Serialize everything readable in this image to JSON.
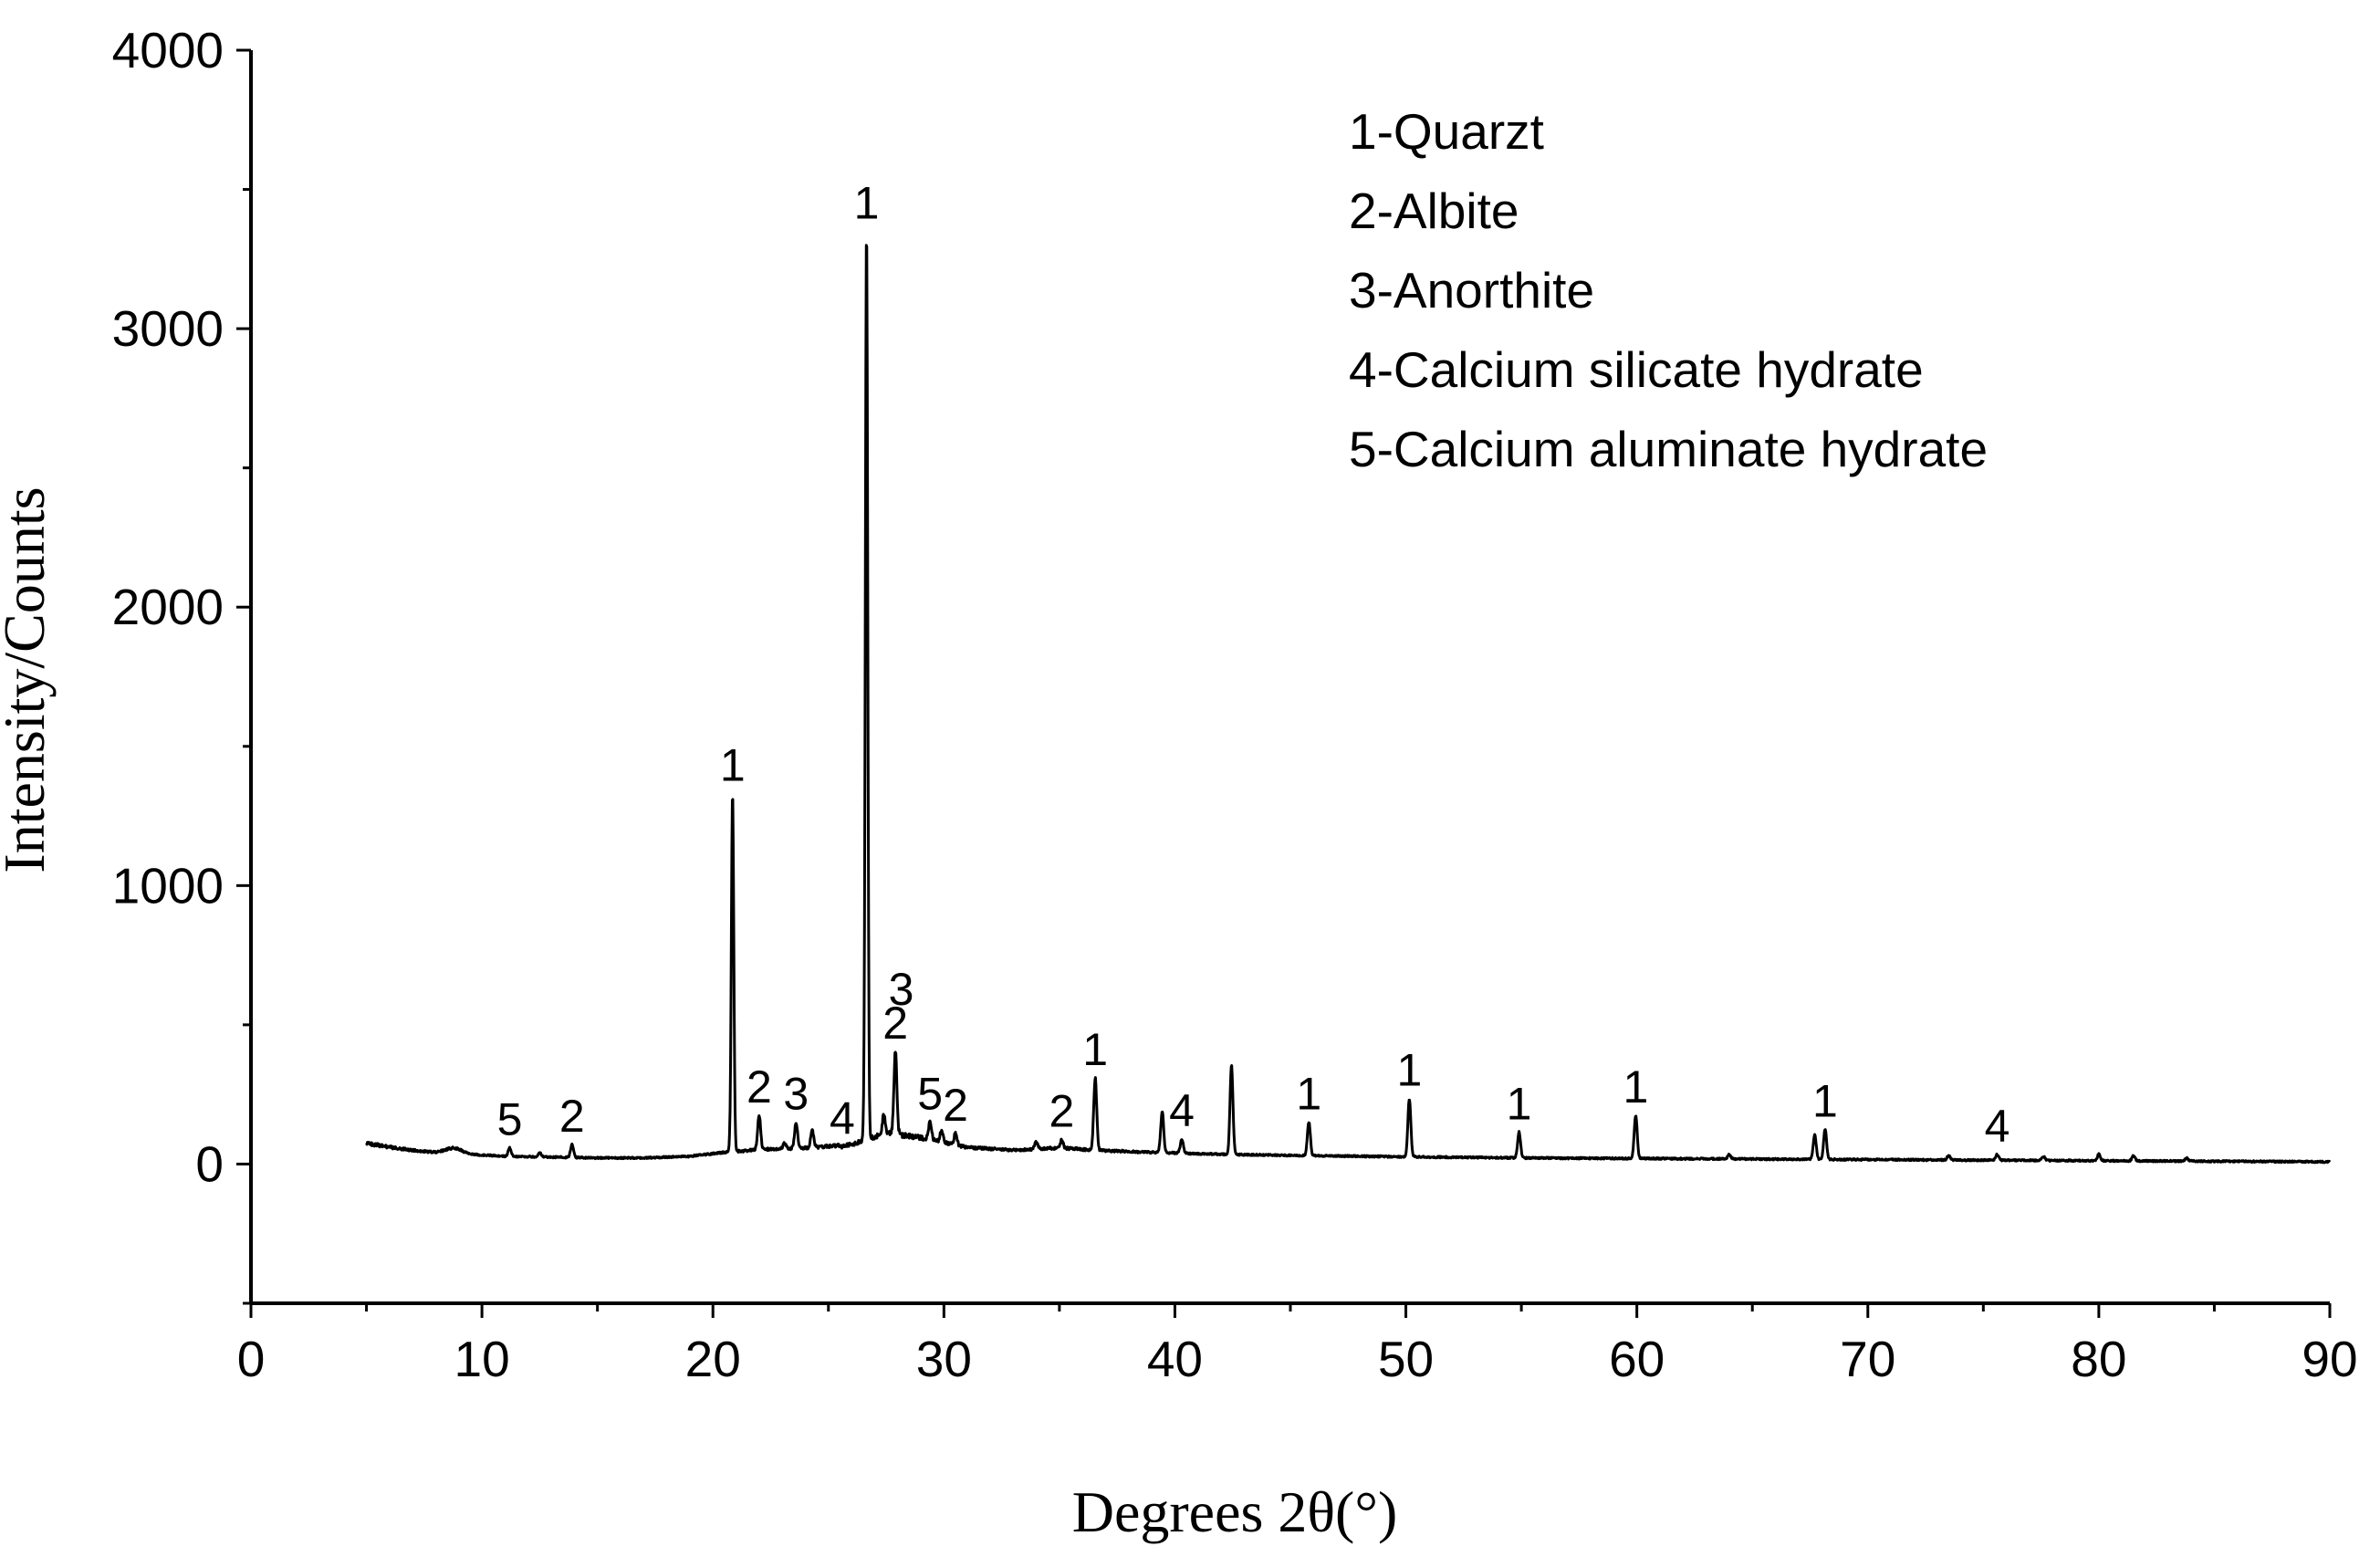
{
  "chart_data": {
    "type": "line",
    "xlabel": "Degrees 2θ(°)",
    "ylabel": "Intensity/Counts",
    "xlim": [
      0,
      90
    ],
    "ylim": [
      -500,
      4000
    ],
    "x_ticks": [
      0,
      10,
      20,
      30,
      40,
      50,
      60,
      70,
      80,
      90
    ],
    "y_ticks": [
      0,
      1000,
      2000,
      3000,
      4000
    ],
    "grid": false,
    "legend_position": "top-right",
    "legend": [
      "1-Quarzt",
      "2-Albite",
      "3-Anorthite",
      "4-Calcium silicate hydrate",
      "5-Calcium aluminate hydrate"
    ],
    "baseline": [
      [
        5,
        75
      ],
      [
        6,
        60
      ],
      [
        7,
        50
      ],
      [
        8,
        42
      ],
      [
        8.8,
        60
      ],
      [
        9.5,
        35
      ],
      [
        11,
        28
      ],
      [
        13,
        25
      ],
      [
        15,
        22
      ],
      [
        17,
        22
      ],
      [
        19,
        28
      ],
      [
        20.5,
        42
      ],
      [
        22,
        52
      ],
      [
        24,
        58
      ],
      [
        26,
        70
      ],
      [
        27.5,
        110
      ],
      [
        29,
        95
      ],
      [
        31,
        60
      ],
      [
        33,
        50
      ],
      [
        35,
        58
      ],
      [
        37,
        48
      ],
      [
        39,
        42
      ],
      [
        42,
        35
      ],
      [
        46,
        30
      ],
      [
        50,
        26
      ],
      [
        55,
        22
      ],
      [
        60,
        20
      ],
      [
        65,
        18
      ],
      [
        70,
        16
      ],
      [
        75,
        14
      ],
      [
        80,
        12
      ],
      [
        85,
        10
      ],
      [
        90,
        8
      ]
    ],
    "peaks": [
      {
        "x": 11.2,
        "y": 58,
        "label": "5"
      },
      {
        "x": 12.5,
        "y": 42,
        "label": ""
      },
      {
        "x": 13.9,
        "y": 70,
        "label": "2"
      },
      {
        "x": 20.85,
        "y": 1330,
        "label": "1"
      },
      {
        "x": 22.0,
        "y": 175,
        "label": "2"
      },
      {
        "x": 23.1,
        "y": 75,
        "label": ""
      },
      {
        "x": 23.6,
        "y": 150,
        "label": "3"
      },
      {
        "x": 24.3,
        "y": 120,
        "label": ""
      },
      {
        "x": 25.6,
        "y": 62,
        "label": "4"
      },
      {
        "x": 26.65,
        "y": 3350,
        "label": "1"
      },
      {
        "x": 27.4,
        "y": 180,
        "label": ""
      },
      {
        "x": 27.9,
        "y": 405,
        "label": "2"
      },
      {
        "x": 29.4,
        "y": 150,
        "label": "5"
      },
      {
        "x": 29.9,
        "y": 120,
        "label": ""
      },
      {
        "x": 30.5,
        "y": 110,
        "label": "2"
      },
      {
        "x": 34.0,
        "y": 80,
        "label": ""
      },
      {
        "x": 35.1,
        "y": 88,
        "label": "2"
      },
      {
        "x": 36.55,
        "y": 310,
        "label": "1"
      },
      {
        "x": 39.45,
        "y": 190,
        "label": ""
      },
      {
        "x": 40.3,
        "y": 90,
        "label": "4"
      },
      {
        "x": 42.45,
        "y": 355,
        "label": ""
      },
      {
        "x": 45.8,
        "y": 150,
        "label": "1"
      },
      {
        "x": 50.15,
        "y": 235,
        "label": "1"
      },
      {
        "x": 54.9,
        "y": 115,
        "label": "1"
      },
      {
        "x": 59.95,
        "y": 175,
        "label": "1"
      },
      {
        "x": 64.0,
        "y": 35,
        "label": ""
      },
      {
        "x": 67.7,
        "y": 105,
        "label": ""
      },
      {
        "x": 68.15,
        "y": 125,
        "label": "1"
      },
      {
        "x": 73.5,
        "y": 30,
        "label": ""
      },
      {
        "x": 75.6,
        "y": 35,
        "label": "4"
      },
      {
        "x": 77.6,
        "y": 28,
        "label": ""
      },
      {
        "x": 80.0,
        "y": 35,
        "label": ""
      },
      {
        "x": 81.5,
        "y": 30,
        "label": ""
      },
      {
        "x": 83.8,
        "y": 22,
        "label": ""
      }
    ],
    "extra_labels": [
      {
        "x": 28.15,
        "y": 630,
        "text": "3"
      }
    ],
    "line_color": "#000000"
  }
}
